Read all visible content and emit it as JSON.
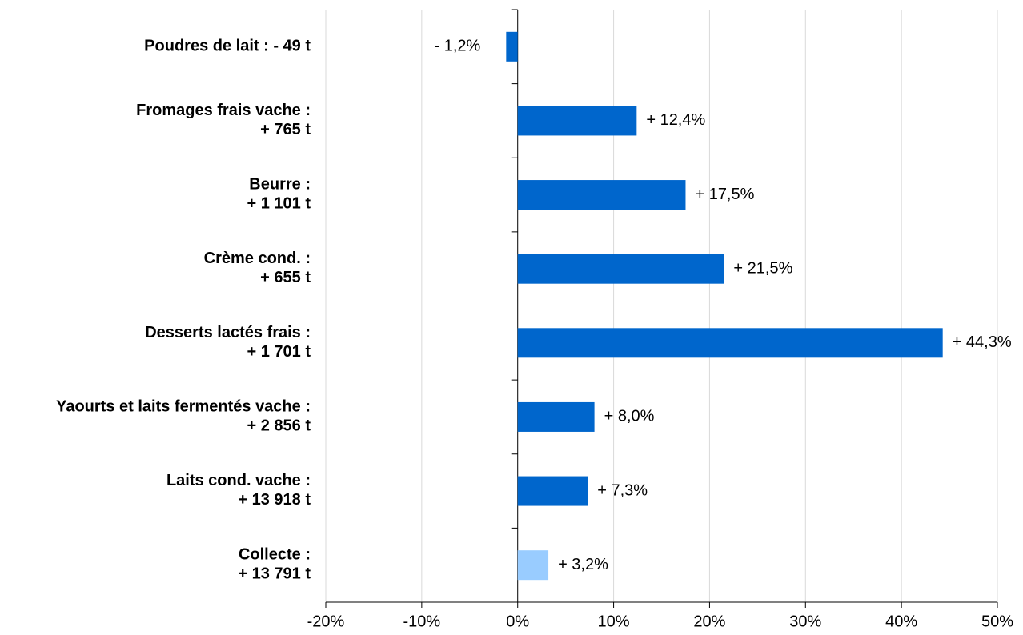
{
  "chart_data": {
    "type": "barh",
    "categories": [
      "Poudres de lait :    - 49 t",
      "Fromages frais vache :\n+ 765 t",
      "Beurre :\n+ 1 101 t",
      "Crème cond. :\n+ 655 t",
      "Desserts lactés frais :\n+ 1 701 t",
      "Yaourts et laits fermentés vache :\n+ 2 856 t",
      "Laits cond. vache :\n+ 13 918 t",
      "Collecte :\n+ 13 791 t"
    ],
    "values": [
      -1.2,
      12.4,
      17.5,
      21.5,
      44.3,
      8.0,
      7.3,
      3.2
    ],
    "value_labels": [
      "- 1,2%",
      "+ 12,4%",
      "+ 17,5%",
      "+ 21,5%",
      "+ 44,3%",
      "+ 8,0%",
      "+ 7,3%",
      "+ 3,2%"
    ],
    "colors": [
      "#0066cc",
      "#0066cc",
      "#0066cc",
      "#0066cc",
      "#0066cc",
      "#0066cc",
      "#0066cc",
      "#99ccff"
    ],
    "xlim": [
      -20,
      50
    ],
    "xticks": [
      {
        "value": -20,
        "label": "-20%"
      },
      {
        "value": -10,
        "label": "-10%"
      },
      {
        "value": 0,
        "label": "0%"
      },
      {
        "value": 10,
        "label": "10%"
      },
      {
        "value": 20,
        "label": "20%"
      },
      {
        "value": 30,
        "label": "30%"
      },
      {
        "value": 40,
        "label": "40%"
      },
      {
        "value": 50,
        "label": "50%"
      }
    ],
    "grid": true
  }
}
